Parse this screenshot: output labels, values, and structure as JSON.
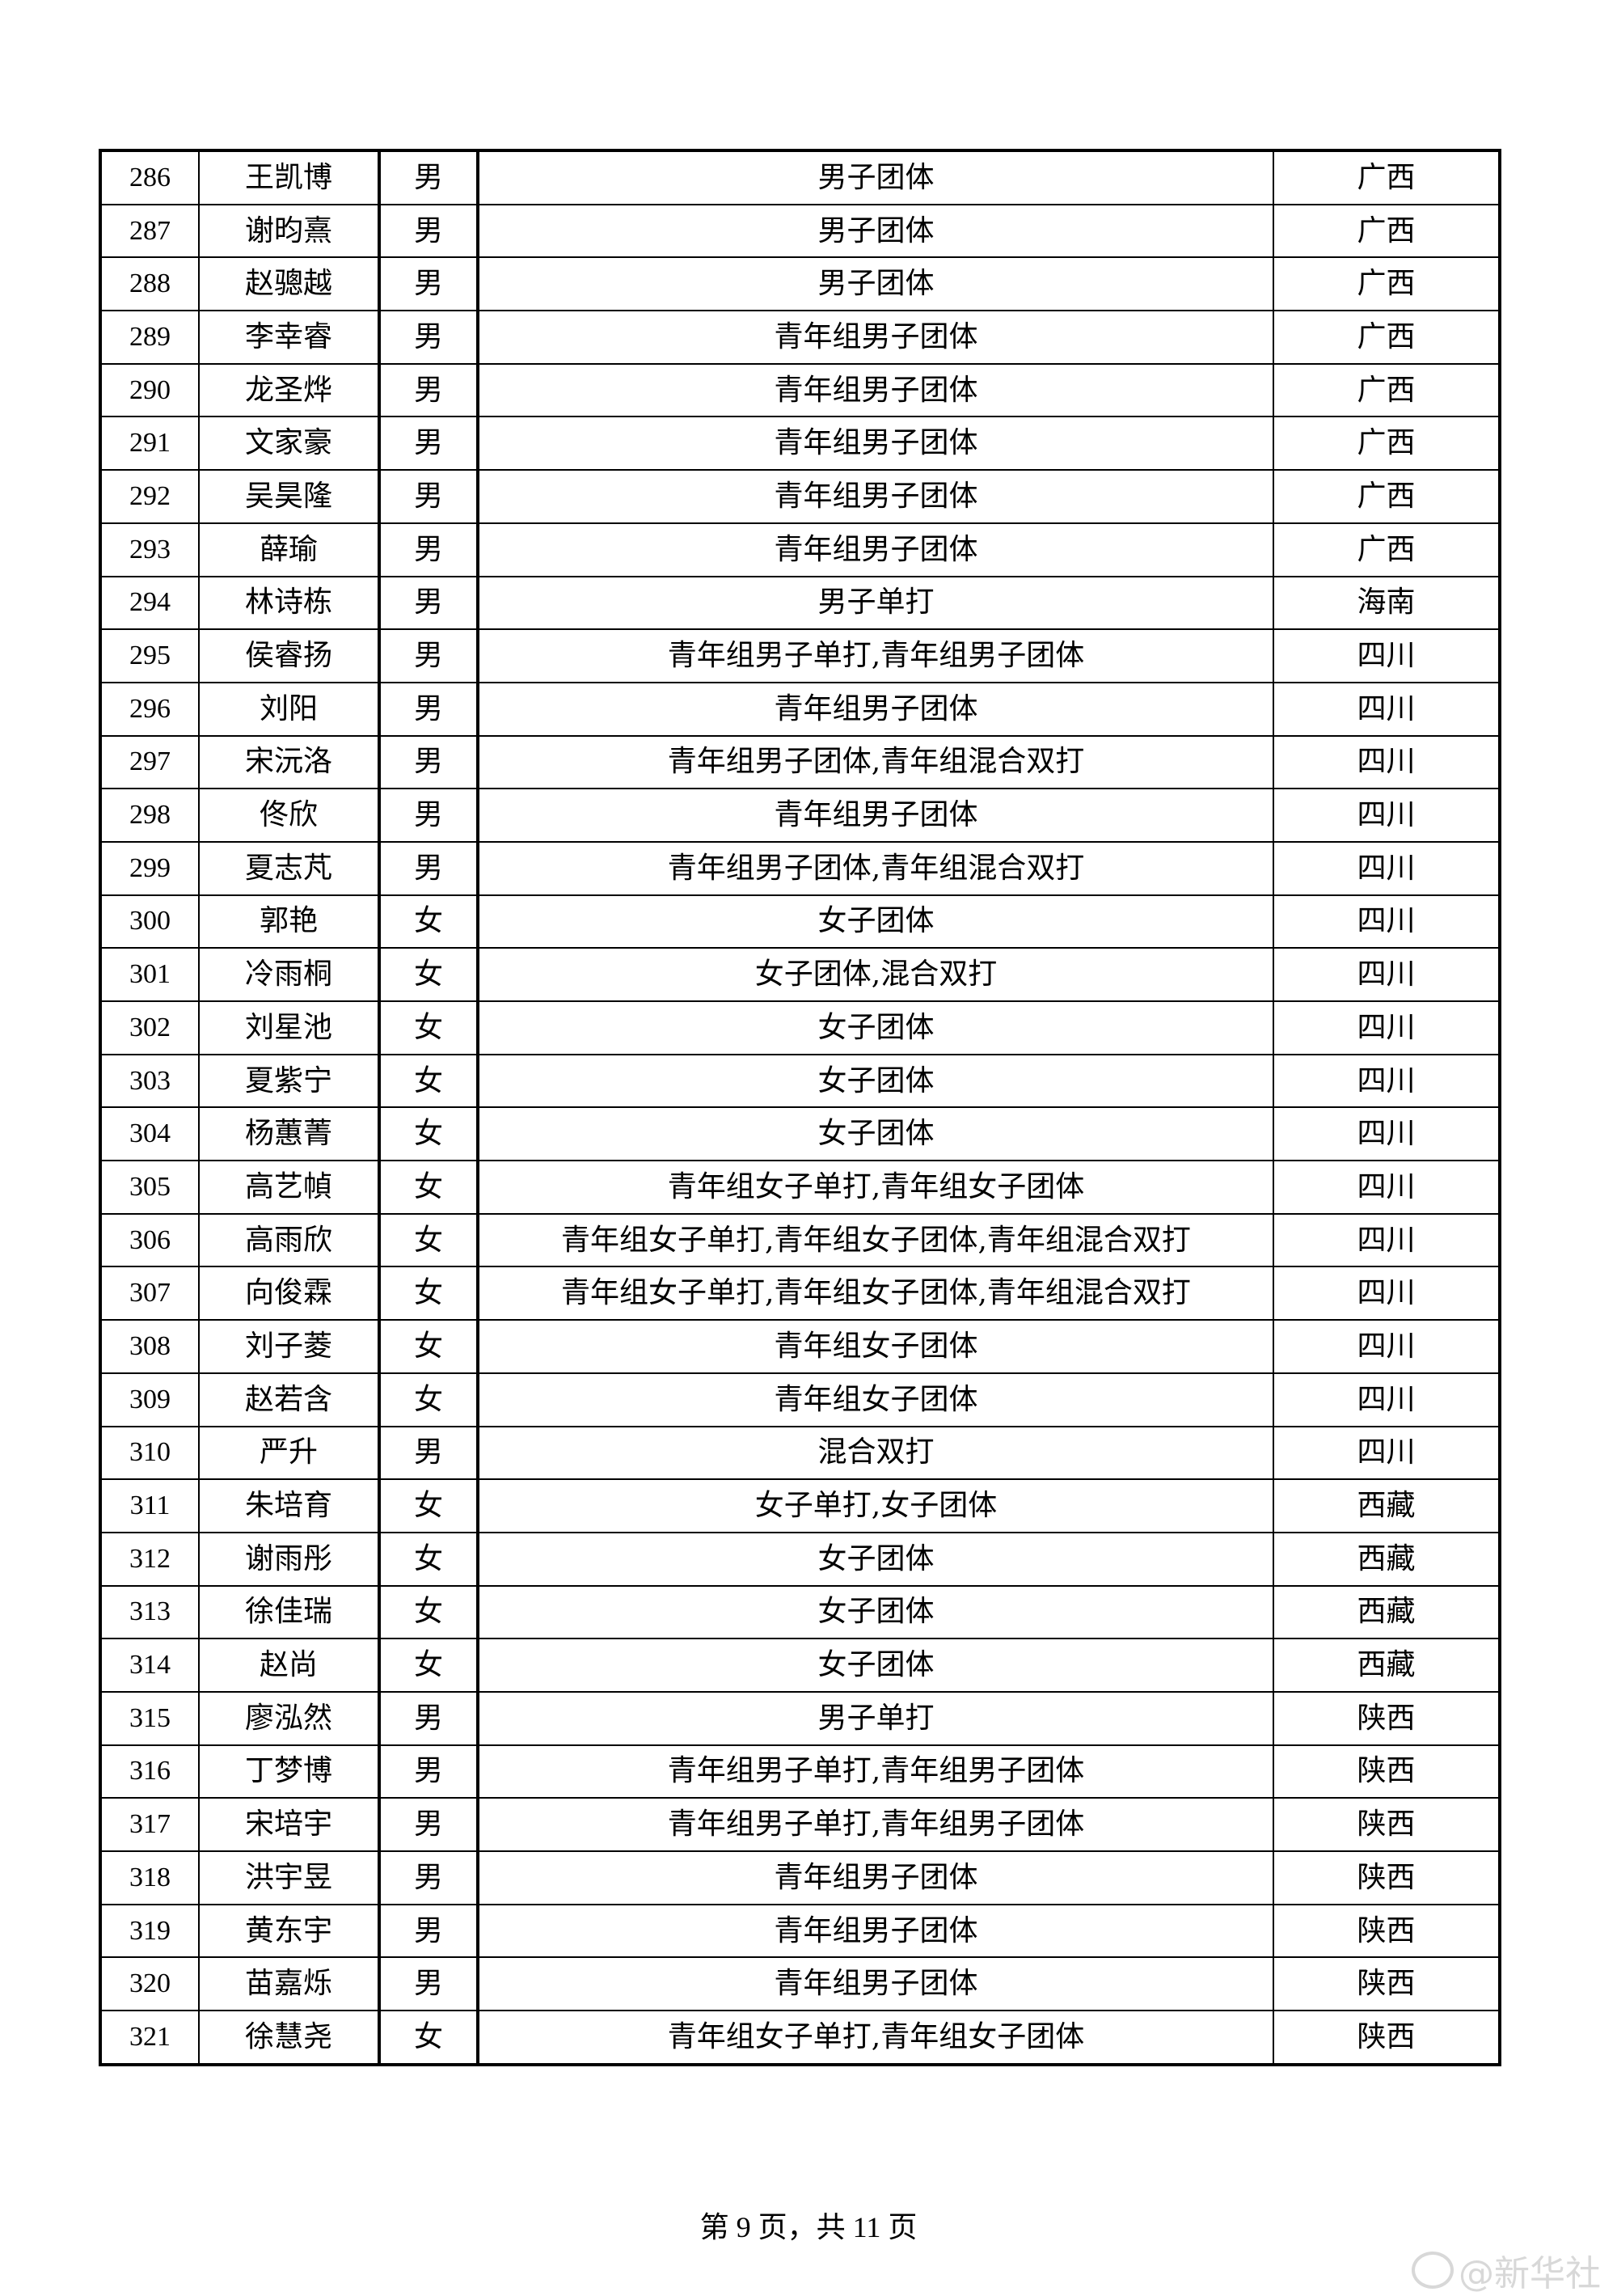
{
  "table": {
    "rows": [
      [
        "286",
        "王凯博",
        "男",
        "男子团体",
        "广西"
      ],
      [
        "287",
        "谢昀熹",
        "男",
        "男子团体",
        "广西"
      ],
      [
        "288",
        "赵骢越",
        "男",
        "男子团体",
        "广西"
      ],
      [
        "289",
        "李幸睿",
        "男",
        "青年组男子团体",
        "广西"
      ],
      [
        "290",
        "龙圣烨",
        "男",
        "青年组男子团体",
        "广西"
      ],
      [
        "291",
        "文家豪",
        "男",
        "青年组男子团体",
        "广西"
      ],
      [
        "292",
        "吴昊隆",
        "男",
        "青年组男子团体",
        "广西"
      ],
      [
        "293",
        "薛瑜",
        "男",
        "青年组男子团体",
        "广西"
      ],
      [
        "294",
        "林诗栋",
        "男",
        "男子单打",
        "海南"
      ],
      [
        "295",
        "侯睿扬",
        "男",
        "青年组男子单打,青年组男子团体",
        "四川"
      ],
      [
        "296",
        "刘阳",
        "男",
        "青年组男子团体",
        "四川"
      ],
      [
        "297",
        "宋沅洛",
        "男",
        "青年组男子团体,青年组混合双打",
        "四川"
      ],
      [
        "298",
        "佟欣",
        "男",
        "青年组男子团体",
        "四川"
      ],
      [
        "299",
        "夏志芃",
        "男",
        "青年组男子团体,青年组混合双打",
        "四川"
      ],
      [
        "300",
        "郭艳",
        "女",
        "女子团体",
        "四川"
      ],
      [
        "301",
        "冷雨桐",
        "女",
        "女子团体,混合双打",
        "四川"
      ],
      [
        "302",
        "刘星池",
        "女",
        "女子团体",
        "四川"
      ],
      [
        "303",
        "夏紫宁",
        "女",
        "女子团体",
        "四川"
      ],
      [
        "304",
        "杨蕙菁",
        "女",
        "女子团体",
        "四川"
      ],
      [
        "305",
        "高艺幀",
        "女",
        "青年组女子单打,青年组女子团体",
        "四川"
      ],
      [
        "306",
        "高雨欣",
        "女",
        "青年组女子单打,青年组女子团体,青年组混合双打",
        "四川"
      ],
      [
        "307",
        "向俊霖",
        "女",
        "青年组女子单打,青年组女子团体,青年组混合双打",
        "四川"
      ],
      [
        "308",
        "刘子菱",
        "女",
        "青年组女子团体",
        "四川"
      ],
      [
        "309",
        "赵若含",
        "女",
        "青年组女子团体",
        "四川"
      ],
      [
        "310",
        "严升",
        "男",
        "混合双打",
        "四川"
      ],
      [
        "311",
        "朱培育",
        "女",
        "女子单打,女子团体",
        "西藏"
      ],
      [
        "312",
        "谢雨彤",
        "女",
        "女子团体",
        "西藏"
      ],
      [
        "313",
        "徐佳瑞",
        "女",
        "女子团体",
        "西藏"
      ],
      [
        "314",
        "赵尚",
        "女",
        "女子团体",
        "西藏"
      ],
      [
        "315",
        "廖泓然",
        "男",
        "男子单打",
        "陕西"
      ],
      [
        "316",
        "丁梦博",
        "男",
        "青年组男子单打,青年组男子团体",
        "陕西"
      ],
      [
        "317",
        "宋培宇",
        "男",
        "青年组男子单打,青年组男子团体",
        "陕西"
      ],
      [
        "318",
        "洪宇昱",
        "男",
        "青年组男子团体",
        "陕西"
      ],
      [
        "319",
        "黄东宇",
        "男",
        "青年组男子团体",
        "陕西"
      ],
      [
        "320",
        "苗嘉烁",
        "男",
        "青年组男子团体",
        "陕西"
      ],
      [
        "321",
        "徐慧尧",
        "女",
        "青年组女子单打,青年组女子团体",
        "陕西"
      ]
    ]
  },
  "footer": {
    "page_label": "第 9 页，共 11 页"
  },
  "watermark": {
    "text": "@新华社",
    "icon": "weibo-icon"
  }
}
